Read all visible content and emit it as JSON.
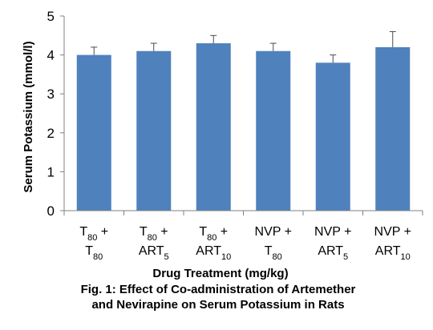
{
  "chart_data": {
    "type": "bar",
    "categories": [
      {
        "line1": "T80 +",
        "line2": "T80"
      },
      {
        "line1": "T80 +",
        "line2": "ART5"
      },
      {
        "line1": "T80 +",
        "line2": "ART10"
      },
      {
        "line1": "NVP +",
        "line2": "T80"
      },
      {
        "line1": "NVP +",
        "line2": "ART5"
      },
      {
        "line1": "NVP +",
        "line2": "ART10"
      }
    ],
    "values": [
      4.0,
      4.1,
      4.3,
      4.1,
      3.8,
      4.2
    ],
    "errors": [
      0.2,
      0.2,
      0.2,
      0.2,
      0.2,
      0.4
    ],
    "ylim": [
      0,
      5
    ],
    "yticks": [
      "0",
      "1",
      "2",
      "3",
      "4",
      "5"
    ],
    "ylabel": "Serum Potassium (mmol/l)",
    "xlabel": "Drug Treatment (mg/kg)",
    "caption_line1": "Fig. 1: Effect of Co-administration of Artemether",
    "caption_line2": "and Nevirapine on Serum Potassium in Rats",
    "bar_color": "#4f81bd",
    "grid": false,
    "legend": "none"
  }
}
